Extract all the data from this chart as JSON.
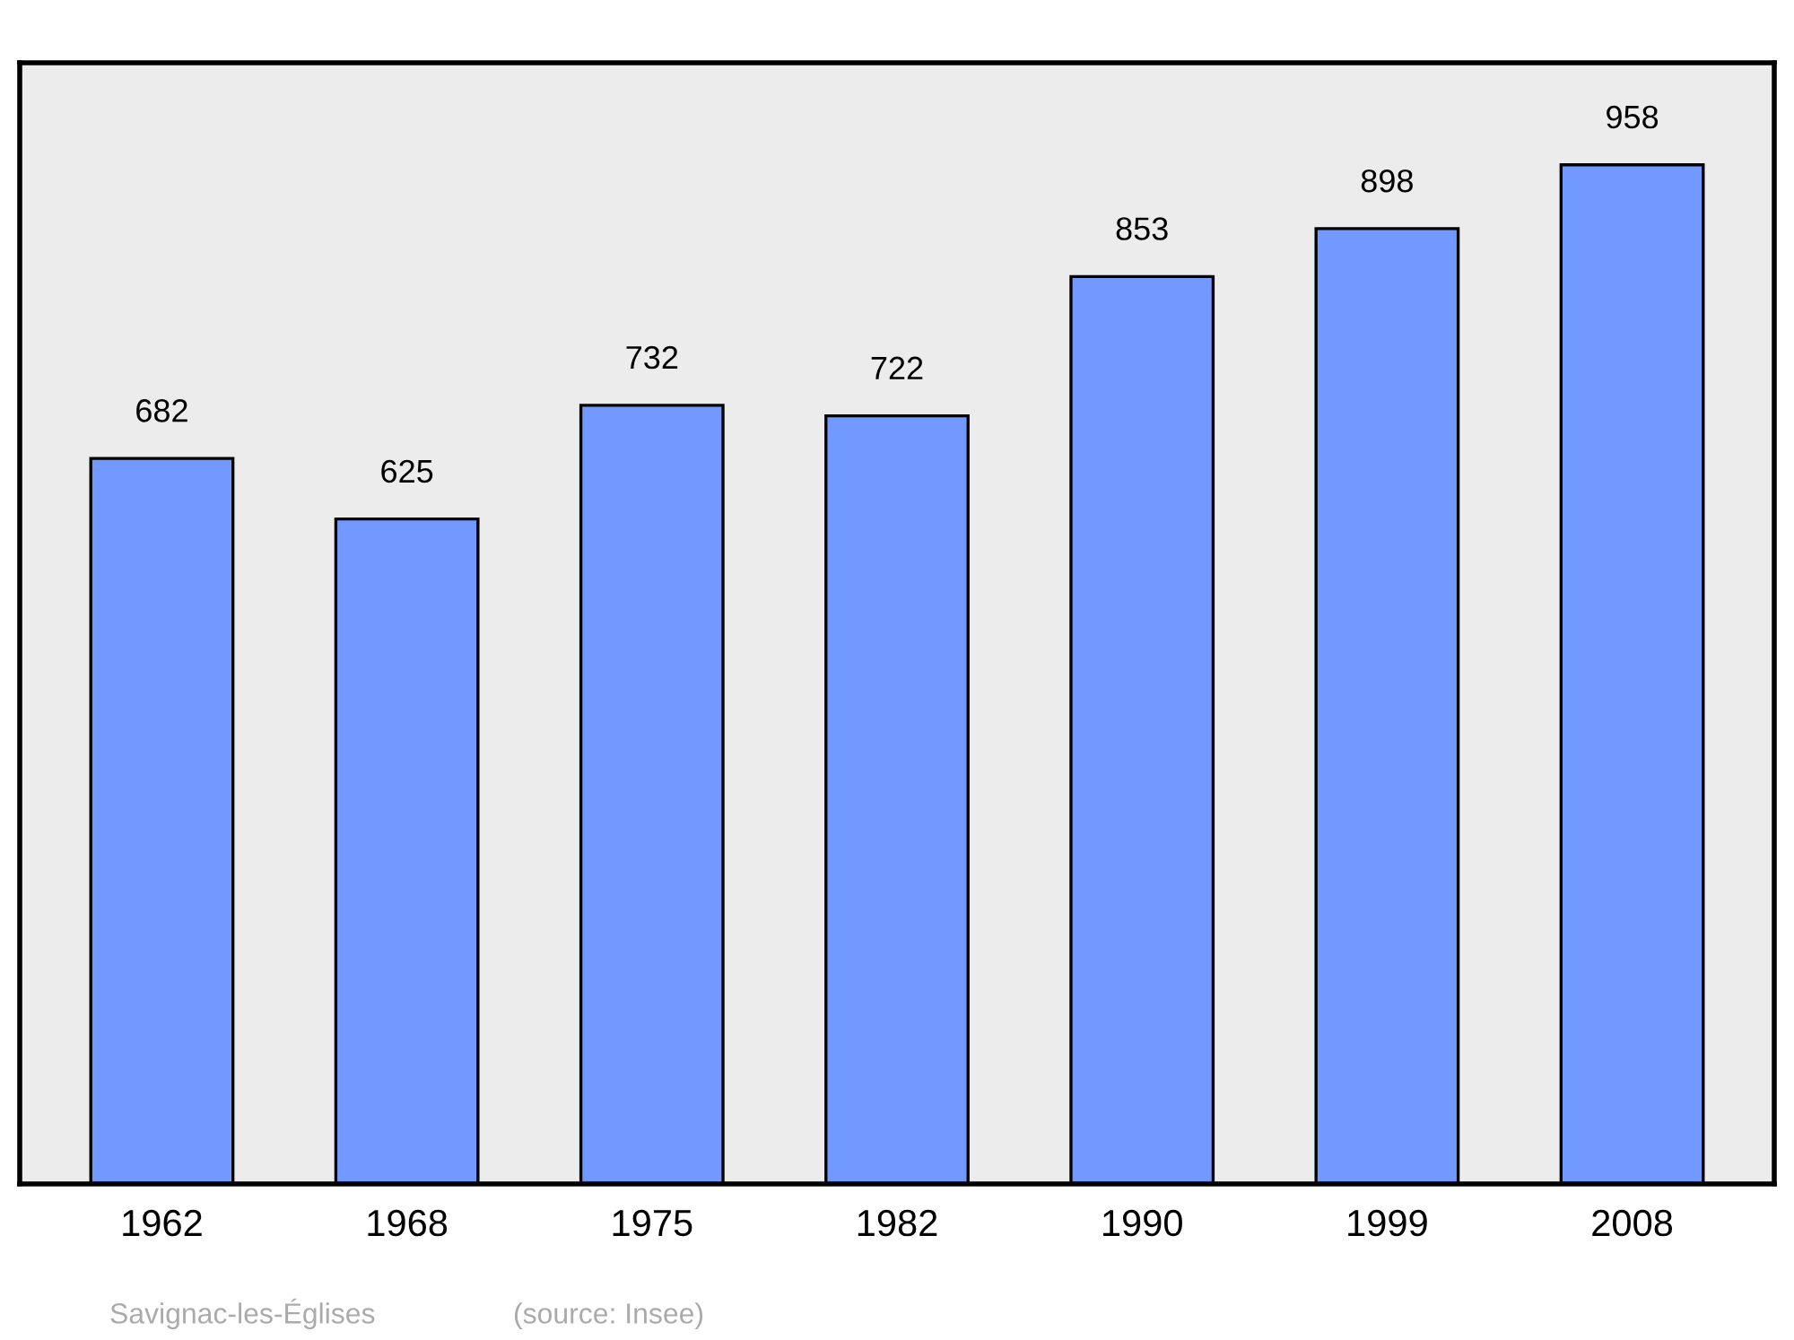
{
  "chart_data": {
    "type": "bar",
    "categories": [
      "1962",
      "1968",
      "1975",
      "1982",
      "1990",
      "1999",
      "2008"
    ],
    "values": [
      682,
      625,
      732,
      722,
      853,
      898,
      958
    ],
    "color": "#7299ff",
    "ylim": [
      0,
      1054
    ],
    "data_labels": true,
    "grid": false,
    "legend": false,
    "annotations": [
      "Savignac-les-Églises",
      "(source: Insee)"
    ]
  }
}
